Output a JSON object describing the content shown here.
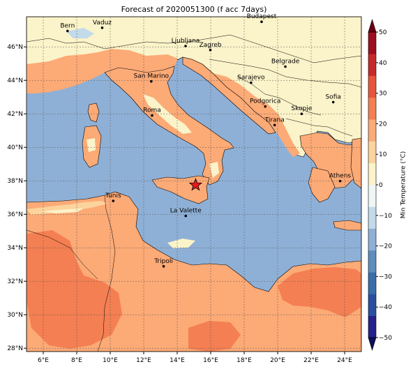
{
  "title": "Forecast of 2020051300 (f acc 7days)",
  "map": {
    "lon_range": [
      5,
      25
    ],
    "lat_range": [
      27.8,
      47.8
    ],
    "lon_ticks": [
      "6°E",
      "8°E",
      "10°E",
      "12°E",
      "14°E",
      "16°E",
      "18°E",
      "20°E",
      "22°E",
      "24°E"
    ],
    "lat_ticks": [
      "28°N",
      "30°N",
      "32°N",
      "34°N",
      "36°N",
      "38°N",
      "40°N",
      "42°N",
      "44°N",
      "46°N"
    ],
    "grid": true,
    "sea_color": "#8fb0d6",
    "cities": [
      {
        "name": "Bern",
        "lon": 7.45,
        "lat": 46.95
      },
      {
        "name": "Vaduz",
        "lon": 9.52,
        "lat": 47.14
      },
      {
        "name": "Budapest",
        "lon": 19.04,
        "lat": 47.5
      },
      {
        "name": "Ljubljana",
        "lon": 14.5,
        "lat": 46.05
      },
      {
        "name": "Zagreb",
        "lon": 15.98,
        "lat": 45.81
      },
      {
        "name": "Belgrade",
        "lon": 20.46,
        "lat": 44.82
      },
      {
        "name": "San Marino",
        "lon": 12.45,
        "lat": 43.94
      },
      {
        "name": "Sarajevo",
        "lon": 18.41,
        "lat": 43.86
      },
      {
        "name": "Sofia",
        "lon": 23.32,
        "lat": 42.7
      },
      {
        "name": "Podgorica",
        "lon": 19.26,
        "lat": 42.44
      },
      {
        "name": "Skopje",
        "lon": 21.43,
        "lat": 42.0
      },
      {
        "name": "Roma",
        "lon": 12.5,
        "lat": 41.9
      },
      {
        "name": "Tirana",
        "lon": 19.82,
        "lat": 41.33
      },
      {
        "name": "Athens",
        "lon": 23.73,
        "lat": 37.98
      },
      {
        "name": "Tunis",
        "lon": 10.18,
        "lat": 36.8
      },
      {
        "name": "La Valette",
        "lon": 14.51,
        "lat": 35.9
      },
      {
        "name": "Tripoli",
        "lon": 13.19,
        "lat": 32.89
      }
    ],
    "marker": {
      "symbol": "star",
      "lon": 15.1,
      "lat": 37.75,
      "color": "#e8171c"
    }
  },
  "colorbar": {
    "label": "Min Temperature (°C)",
    "ticks": [
      "−50",
      "−40",
      "−30",
      "−20",
      "−10",
      "0",
      "10",
      "20",
      "30",
      "40",
      "50"
    ],
    "range": [
      -50,
      50
    ],
    "extend": "both",
    "colors": [
      "#24218a",
      "#2b4fa0",
      "#3a6eaa",
      "#5d8fbd",
      "#8fb0d6",
      "#c2daea",
      "#eef7f6",
      "#fbf3c9",
      "#fdd39c",
      "#fcaa76",
      "#f47f52",
      "#e8553a",
      "#c72a2a",
      "#9e0f1f"
    ]
  }
}
